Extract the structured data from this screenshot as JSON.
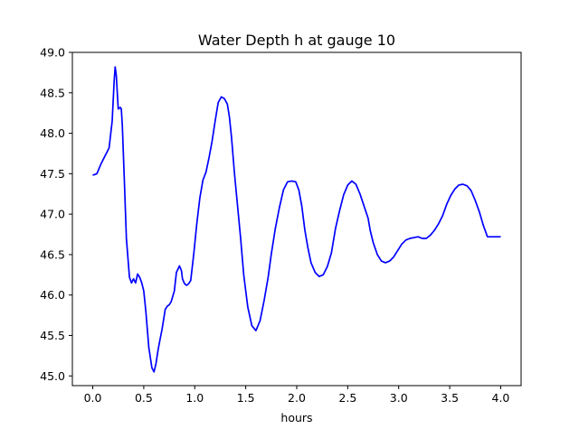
{
  "chart_data": {
    "type": "line",
    "title": "Water Depth h at gauge 10",
    "xlabel": "hours",
    "ylabel": "",
    "xlim": [
      -0.2,
      4.2
    ],
    "ylim": [
      44.88,
      49.0
    ],
    "x_ticks": [
      0.0,
      0.5,
      1.0,
      1.5,
      2.0,
      2.5,
      3.0,
      3.5,
      4.0
    ],
    "x_tick_labels": [
      "0.0",
      "0.5",
      "1.0",
      "1.5",
      "2.0",
      "2.5",
      "3.0",
      "3.5",
      "4.0"
    ],
    "y_ticks": [
      45.0,
      45.5,
      46.0,
      46.5,
      47.0,
      47.5,
      48.0,
      48.5,
      49.0
    ],
    "y_tick_labels": [
      "45.0",
      "45.5",
      "46.0",
      "46.5",
      "47.0",
      "47.5",
      "48.0",
      "48.5",
      "49.0"
    ],
    "grid": false,
    "line_color": "#0000ff",
    "series": [
      {
        "x": [
          0.0,
          0.04,
          0.08,
          0.12,
          0.16,
          0.19,
          0.21,
          0.22,
          0.23,
          0.25,
          0.27,
          0.28,
          0.29,
          0.31,
          0.33,
          0.36,
          0.38,
          0.4,
          0.42,
          0.44,
          0.46,
          0.48,
          0.5,
          0.52,
          0.55,
          0.58,
          0.6,
          0.62,
          0.64,
          0.66,
          0.68,
          0.71,
          0.73,
          0.75,
          0.77,
          0.8,
          0.82,
          0.85,
          0.87,
          0.88,
          0.9,
          0.92,
          0.94,
          0.96,
          0.99,
          1.02,
          1.05,
          1.08,
          1.11,
          1.14,
          1.17,
          1.2,
          1.23,
          1.26,
          1.29,
          1.32,
          1.34,
          1.36,
          1.39,
          1.42,
          1.45,
          1.48,
          1.52,
          1.56,
          1.6,
          1.64,
          1.68,
          1.72,
          1.75,
          1.79,
          1.83,
          1.87,
          1.91,
          1.95,
          1.99,
          2.02,
          2.05,
          2.08,
          2.11,
          2.14,
          2.18,
          2.22,
          2.26,
          2.3,
          2.34,
          2.38,
          2.42,
          2.46,
          2.5,
          2.54,
          2.58,
          2.62,
          2.66,
          2.7,
          2.72,
          2.75,
          2.79,
          2.83,
          2.87,
          2.91,
          2.95,
          2.99,
          3.03,
          3.07,
          3.11,
          3.15,
          3.19,
          3.23,
          3.27,
          3.31,
          3.35,
          3.39,
          3.43,
          3.47,
          3.51,
          3.55,
          3.59,
          3.63,
          3.67,
          3.71,
          3.75,
          3.79,
          3.83,
          3.87,
          3.91,
          3.95,
          4.0
        ],
        "y": [
          47.48,
          47.5,
          47.62,
          47.72,
          47.82,
          48.15,
          48.65,
          48.82,
          48.72,
          48.3,
          48.32,
          48.3,
          48.1,
          47.4,
          46.7,
          46.22,
          46.15,
          46.2,
          46.15,
          46.26,
          46.22,
          46.15,
          46.05,
          45.8,
          45.35,
          45.1,
          45.05,
          45.15,
          45.32,
          45.45,
          45.58,
          45.82,
          45.86,
          45.88,
          45.92,
          46.05,
          46.28,
          46.36,
          46.3,
          46.2,
          46.14,
          46.12,
          46.14,
          46.18,
          46.5,
          46.88,
          47.2,
          47.42,
          47.52,
          47.7,
          47.9,
          48.15,
          48.38,
          48.45,
          48.43,
          48.36,
          48.2,
          47.95,
          47.5,
          47.1,
          46.7,
          46.25,
          45.85,
          45.62,
          45.56,
          45.68,
          45.93,
          46.22,
          46.5,
          46.82,
          47.08,
          47.3,
          47.4,
          47.41,
          47.4,
          47.3,
          47.1,
          46.8,
          46.58,
          46.4,
          46.28,
          46.23,
          46.25,
          46.35,
          46.52,
          46.82,
          47.04,
          47.24,
          47.36,
          47.41,
          47.37,
          47.25,
          47.1,
          46.95,
          46.8,
          46.65,
          46.5,
          46.42,
          46.4,
          46.42,
          46.47,
          46.55,
          46.63,
          46.68,
          46.7,
          46.71,
          46.72,
          46.7,
          46.7,
          46.74,
          46.8,
          46.88,
          46.98,
          47.12,
          47.23,
          47.31,
          47.36,
          47.37,
          47.35,
          47.29,
          47.17,
          47.03,
          46.86,
          46.72,
          46.72,
          46.72,
          46.72
        ]
      }
    ]
  }
}
